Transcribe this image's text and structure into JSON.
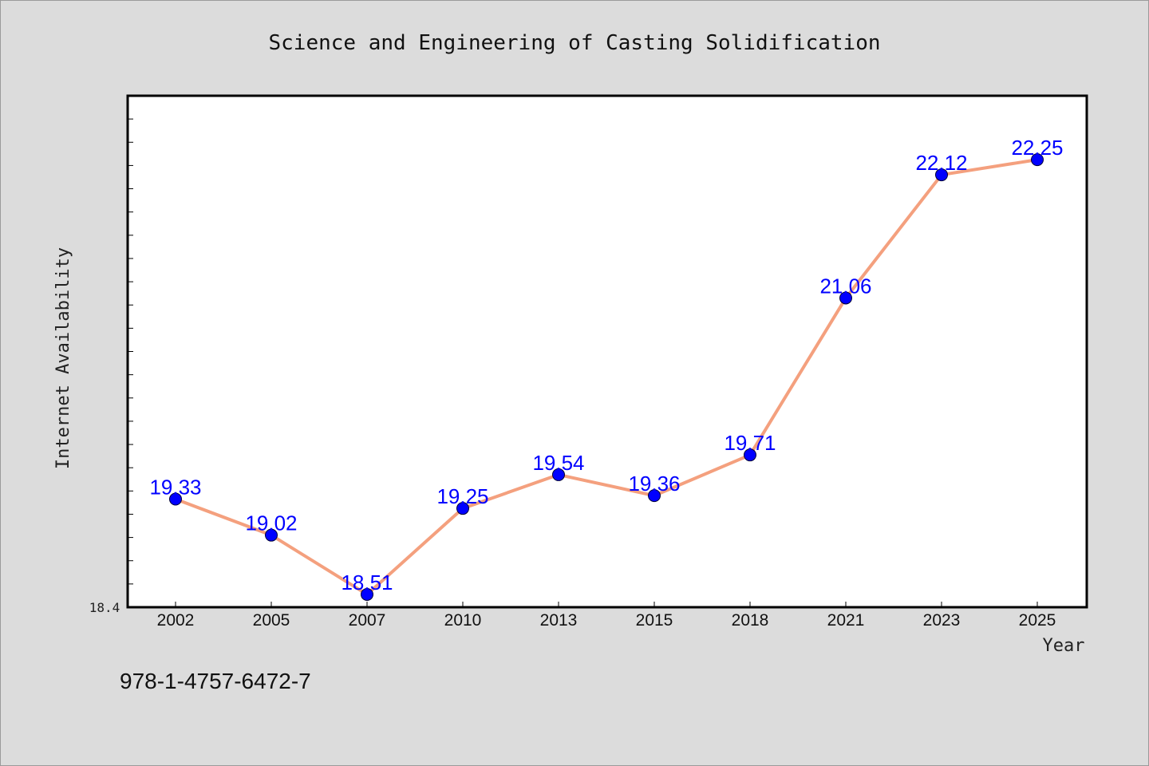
{
  "chart_data": {
    "type": "line",
    "title": "Science and Engineering of Casting Solidification",
    "xlabel": "Year",
    "ylabel": "Internet Availability",
    "categories": [
      "2002",
      "2005",
      "2007",
      "2010",
      "2013",
      "2015",
      "2018",
      "2021",
      "2023",
      "2025"
    ],
    "series": [
      {
        "values": [
          19.33,
          19.02,
          18.51,
          19.25,
          19.54,
          19.36,
          19.71,
          21.06,
          22.12,
          22.25
        ],
        "labels": [
          "19.33",
          "19.02",
          "18.51",
          "19.25",
          "19.54",
          "19.36",
          "19.71",
          "21.06",
          "22.12",
          "22.25"
        ]
      }
    ],
    "ylim": [
      18.4,
      22.8
    ],
    "ymin_label": "18.4",
    "grid": false,
    "colors": {
      "line": "#f4a07e",
      "marker": "#0000ff",
      "data_label": "#0000ff"
    }
  },
  "footer": {
    "isbn": "978-1-4757-6472-7"
  }
}
